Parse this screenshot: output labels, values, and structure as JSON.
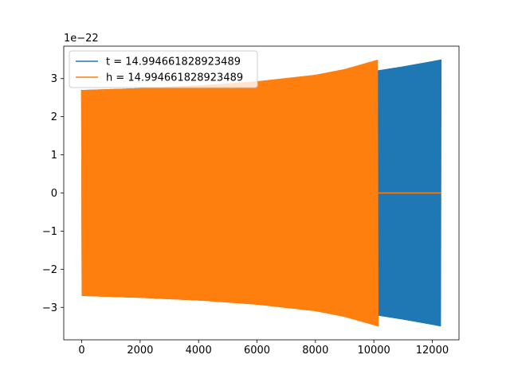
{
  "chart_data": {
    "type": "line",
    "title": "",
    "xlabel": "",
    "ylabel": "",
    "xlim": [
      -615,
      12915
    ],
    "ylim": [
      -3.85,
      3.85
    ],
    "y_scale_label": "1e−22",
    "xticks": [
      0,
      2000,
      4000,
      6000,
      8000,
      10000,
      12000
    ],
    "xtick_labels": [
      "0",
      "2000",
      "4000",
      "6000",
      "8000",
      "10000",
      "12000"
    ],
    "yticks": [
      -3,
      -2,
      -1,
      0,
      1,
      2,
      3
    ],
    "ytick_labels": [
      "−3",
      "−2",
      "−1",
      "0",
      "1",
      "2",
      "3"
    ],
    "grid": false,
    "legend_position": "upper-left",
    "series": [
      {
        "name": "t = 14.994661828923489",
        "color": "#1f77b4",
        "envelope_points": [
          {
            "x": 0,
            "amp": 2.7
          },
          {
            "x": 2000,
            "amp": 2.75
          },
          {
            "x": 4000,
            "amp": 2.82
          },
          {
            "x": 6000,
            "amp": 2.9
          },
          {
            "x": 8000,
            "amp": 3.02
          },
          {
            "x": 10000,
            "amp": 3.2
          },
          {
            "x": 11000,
            "amp": 3.32
          },
          {
            "x": 12300,
            "amp": 3.5
          }
        ],
        "x_end": 12300
      },
      {
        "name": "h = 14.994661828923489",
        "color": "#ff7f0e",
        "envelope_points": [
          {
            "x": 0,
            "amp": 2.7
          },
          {
            "x": 2000,
            "amp": 2.75
          },
          {
            "x": 4000,
            "amp": 2.82
          },
          {
            "x": 6000,
            "amp": 2.93
          },
          {
            "x": 8000,
            "amp": 3.1
          },
          {
            "x": 9000,
            "amp": 3.25
          },
          {
            "x": 10150,
            "amp": 3.5
          }
        ],
        "x_end": 10150,
        "zero_tail_end": 12300
      }
    ]
  }
}
